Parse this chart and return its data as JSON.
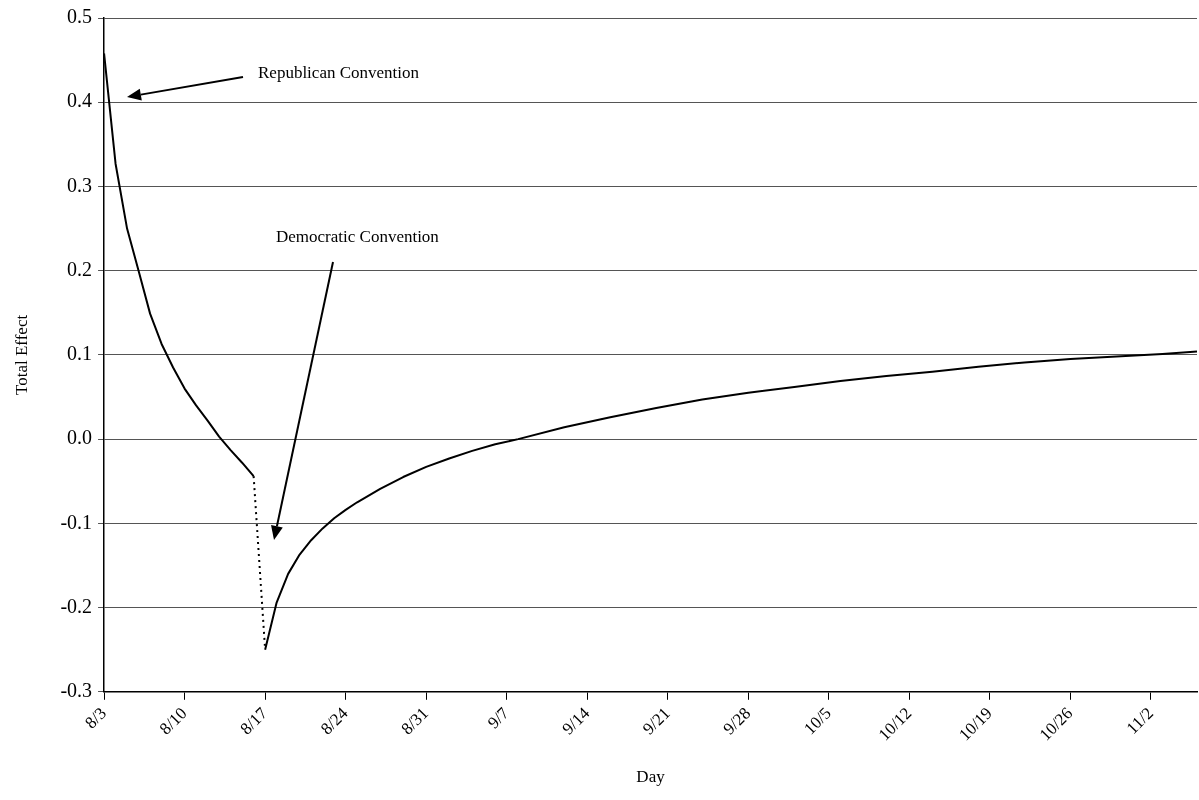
{
  "chart_data": {
    "type": "line",
    "xlabel": "Day",
    "ylabel": "Total Effect",
    "xlim": [
      "--08-03",
      "--11-06"
    ],
    "xticks": [
      {
        "value": "--08-03",
        "label": "8/3"
      },
      {
        "value": "--08-10",
        "label": "8/10"
      },
      {
        "value": "--08-17",
        "label": "8/17"
      },
      {
        "value": "--08-24",
        "label": "8/24"
      },
      {
        "value": "--08-31",
        "label": "8/31"
      },
      {
        "value": "--09-07",
        "label": "9/7"
      },
      {
        "value": "--09-14",
        "label": "9/14"
      },
      {
        "value": "--09-21",
        "label": "9/21"
      },
      {
        "value": "--09-28",
        "label": "9/28"
      },
      {
        "value": "--10-05",
        "label": "10/5"
      },
      {
        "value": "--10-12",
        "label": "10/12"
      },
      {
        "value": "--10-19",
        "label": "10/19"
      },
      {
        "value": "--10-26",
        "label": "10/26"
      },
      {
        "value": "--11-02",
        "label": "11/2"
      }
    ],
    "ylim": [
      -0.3,
      0.5
    ],
    "yticks": [
      -0.3,
      -0.2,
      -0.1,
      {
        "value": 0,
        "label": "0.0"
      },
      0.1,
      0.2,
      0.3,
      0.4,
      0.5
    ],
    "grid": "y",
    "legend": false,
    "marker": "none",
    "series": [
      {
        "color": "#000000",
        "line_style": "solid",
        "x": [
          "--08-03",
          "--08-04",
          "--08-05",
          "--08-06",
          "--08-07",
          "--08-08",
          "--08-09",
          "--08-10",
          "--08-11",
          "--08-12",
          "--08-13",
          "--08-14",
          "--08-15",
          "--08-16"
        ],
        "values": [
          0.458,
          0.327,
          0.25,
          0.2,
          0.149,
          0.113,
          0.085,
          0.06,
          0.04,
          0.022,
          0.003,
          -0.013,
          -0.028,
          -0.044
        ]
      },
      {
        "color": "#000000",
        "line_style": "dotted",
        "x": [
          "--08-16",
          "--08-17"
        ],
        "values": [
          -0.044,
          -0.25
        ]
      },
      {
        "color": "#000000",
        "line_style": "solid",
        "x": [
          "--08-17",
          "--08-18",
          "--08-19",
          "--08-20",
          "--08-21",
          "--08-22",
          "--08-23",
          "--08-24",
          "--08-25",
          "--08-27",
          "--08-29",
          "--08-31",
          "--09-02",
          "--09-04",
          "--09-06",
          "--09-08",
          "--09-12",
          "--09-16",
          "--09-20",
          "--09-24",
          "--09-28",
          "--10-02",
          "--10-06",
          "--10-10",
          "--10-14",
          "--10-18",
          "--10-22",
          "--10-26",
          "--10-30",
          "--11-03",
          "--11-06"
        ],
        "values": [
          -0.25,
          -0.194,
          -0.16,
          -0.137,
          -0.12,
          -0.106,
          -0.094,
          -0.084,
          -0.075,
          -0.059,
          -0.045,
          -0.033,
          -0.023,
          -0.014,
          -0.006,
          0.0,
          0.014,
          0.026,
          0.037,
          0.047,
          0.055,
          0.062,
          0.069,
          0.075,
          0.08,
          0.086,
          0.091,
          0.095,
          0.098,
          0.101,
          0.104
        ]
      }
    ],
    "annotations": [
      "Republican Convention",
      "Democratic Convention"
    ]
  }
}
